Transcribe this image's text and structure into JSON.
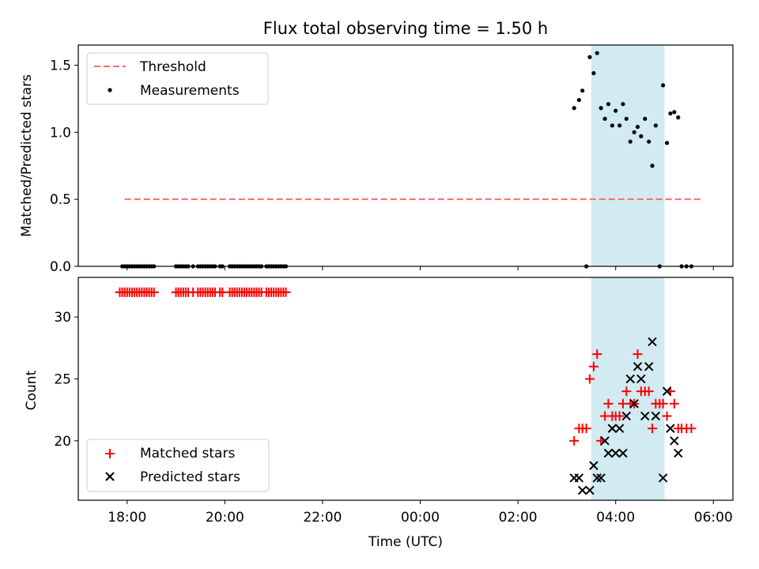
{
  "chart_data": {
    "title": "Flux total observing time = 1.50 h",
    "xlabel": "Time (UTC)",
    "xlim_hours": [
      17.0,
      30.4
    ],
    "x_ticks": [
      {
        "h": 18,
        "label": "18:00"
      },
      {
        "h": 20,
        "label": "20:00"
      },
      {
        "h": 22,
        "label": "22:00"
      },
      {
        "h": 24,
        "label": "00:00"
      },
      {
        "h": 26,
        "label": "02:00"
      },
      {
        "h": 28,
        "label": "04:00"
      },
      {
        "h": 30,
        "label": "06:00"
      }
    ],
    "highlight_span_hours": [
      27.5,
      29.0
    ],
    "highlight_color": "#add8e6",
    "panels": [
      {
        "type": "line+scatter",
        "ylabel": "Matched/Predicted stars",
        "ylim": [
          0,
          1.65
        ],
        "y_ticks": [
          {
            "v": 0.0,
            "label": "0.0"
          },
          {
            "v": 0.5,
            "label": "0.5"
          },
          {
            "v": 1.0,
            "label": "1.0"
          },
          {
            "v": 1.5,
            "label": "1.5"
          }
        ],
        "legend": {
          "position": "top-left",
          "threshold": "Threshold",
          "measurements": "Measurements"
        },
        "threshold": {
          "value": 0.5,
          "x_range_hours": [
            17.95,
            29.75
          ],
          "color": "#ff6b6b"
        },
        "measurements": [
          [
            17.9,
            0
          ],
          [
            17.95,
            0
          ],
          [
            18.0,
            0
          ],
          [
            18.05,
            0
          ],
          [
            18.1,
            0
          ],
          [
            18.15,
            0
          ],
          [
            18.2,
            0
          ],
          [
            18.25,
            0
          ],
          [
            18.3,
            0
          ],
          [
            18.35,
            0
          ],
          [
            18.4,
            0
          ],
          [
            18.45,
            0
          ],
          [
            18.5,
            0
          ],
          [
            18.55,
            0
          ],
          [
            19.0,
            0
          ],
          [
            19.05,
            0
          ],
          [
            19.1,
            0
          ],
          [
            19.15,
            0
          ],
          [
            19.2,
            0
          ],
          [
            19.25,
            0
          ],
          [
            19.35,
            0
          ],
          [
            19.45,
            0
          ],
          [
            19.5,
            0
          ],
          [
            19.55,
            0
          ],
          [
            19.6,
            0
          ],
          [
            19.65,
            0
          ],
          [
            19.7,
            0
          ],
          [
            19.75,
            0
          ],
          [
            19.8,
            0
          ],
          [
            19.9,
            0
          ],
          [
            19.95,
            0
          ],
          [
            20.1,
            0
          ],
          [
            20.15,
            0
          ],
          [
            20.2,
            0
          ],
          [
            20.25,
            0
          ],
          [
            20.3,
            0
          ],
          [
            20.35,
            0
          ],
          [
            20.4,
            0
          ],
          [
            20.45,
            0
          ],
          [
            20.5,
            0
          ],
          [
            20.55,
            0
          ],
          [
            20.6,
            0
          ],
          [
            20.65,
            0
          ],
          [
            20.7,
            0
          ],
          [
            20.75,
            0
          ],
          [
            20.85,
            0
          ],
          [
            20.9,
            0
          ],
          [
            20.95,
            0
          ],
          [
            21.0,
            0
          ],
          [
            21.05,
            0
          ],
          [
            21.1,
            0
          ],
          [
            21.15,
            0
          ],
          [
            21.2,
            0
          ],
          [
            21.25,
            0
          ],
          [
            27.15,
            1.18
          ],
          [
            27.25,
            1.24
          ],
          [
            27.32,
            1.31
          ],
          [
            27.4,
            0.0
          ],
          [
            27.47,
            1.56
          ],
          [
            27.55,
            1.44
          ],
          [
            27.62,
            1.59
          ],
          [
            27.7,
            1.18
          ],
          [
            27.78,
            1.1
          ],
          [
            27.85,
            1.21
          ],
          [
            27.93,
            1.05
          ],
          [
            28.0,
            1.16
          ],
          [
            28.08,
            1.05
          ],
          [
            28.15,
            1.21
          ],
          [
            28.22,
            1.1
          ],
          [
            28.3,
            0.93
          ],
          [
            28.38,
            1.0
          ],
          [
            28.45,
            1.04
          ],
          [
            28.52,
            0.97
          ],
          [
            28.6,
            1.1
          ],
          [
            28.68,
            0.93
          ],
          [
            28.75,
            0.75
          ],
          [
            28.82,
            1.05
          ],
          [
            28.9,
            0.0
          ],
          [
            28.97,
            1.35
          ],
          [
            29.05,
            0.92
          ],
          [
            29.12,
            1.14
          ],
          [
            29.2,
            1.15
          ],
          [
            29.28,
            1.11
          ],
          [
            29.35,
            0.0
          ],
          [
            29.45,
            0.0
          ],
          [
            29.55,
            0.0
          ]
        ]
      },
      {
        "type": "scatter",
        "ylabel": "Count",
        "ylim": [
          15.2,
          33.2
        ],
        "y_ticks": [
          {
            "v": 20,
            "label": "20"
          },
          {
            "v": 25,
            "label": "25"
          },
          {
            "v": 30,
            "label": "30"
          }
        ],
        "legend": {
          "position": "bottom-left"
        },
        "series": [
          {
            "name": "Matched stars",
            "marker": "plus",
            "color": "#ff0000",
            "points": [
              [
                17.85,
                32
              ],
              [
                17.9,
                32
              ],
              [
                17.95,
                32
              ],
              [
                18.0,
                32
              ],
              [
                18.05,
                32
              ],
              [
                18.1,
                32
              ],
              [
                18.15,
                32
              ],
              [
                18.2,
                32
              ],
              [
                18.25,
                32
              ],
              [
                18.3,
                32
              ],
              [
                18.35,
                32
              ],
              [
                18.4,
                32
              ],
              [
                18.45,
                32
              ],
              [
                18.5,
                32
              ],
              [
                18.55,
                32
              ],
              [
                19.0,
                32
              ],
              [
                19.05,
                32
              ],
              [
                19.1,
                32
              ],
              [
                19.15,
                32
              ],
              [
                19.2,
                32
              ],
              [
                19.25,
                32
              ],
              [
                19.35,
                32
              ],
              [
                19.45,
                32
              ],
              [
                19.5,
                32
              ],
              [
                19.55,
                32
              ],
              [
                19.6,
                32
              ],
              [
                19.65,
                32
              ],
              [
                19.7,
                32
              ],
              [
                19.75,
                32
              ],
              [
                19.8,
                32
              ],
              [
                19.9,
                32
              ],
              [
                19.95,
                32
              ],
              [
                20.1,
                32
              ],
              [
                20.15,
                32
              ],
              [
                20.2,
                32
              ],
              [
                20.25,
                32
              ],
              [
                20.3,
                32
              ],
              [
                20.35,
                32
              ],
              [
                20.4,
                32
              ],
              [
                20.45,
                32
              ],
              [
                20.5,
                32
              ],
              [
                20.55,
                32
              ],
              [
                20.6,
                32
              ],
              [
                20.65,
                32
              ],
              [
                20.7,
                32
              ],
              [
                20.75,
                32
              ],
              [
                20.85,
                32
              ],
              [
                20.9,
                32
              ],
              [
                20.95,
                32
              ],
              [
                21.0,
                32
              ],
              [
                21.05,
                32
              ],
              [
                21.1,
                32
              ],
              [
                21.15,
                32
              ],
              [
                21.2,
                32
              ],
              [
                21.25,
                32
              ],
              [
                27.15,
                20
              ],
              [
                27.25,
                21
              ],
              [
                27.32,
                21
              ],
              [
                27.4,
                21
              ],
              [
                27.47,
                25
              ],
              [
                27.55,
                26
              ],
              [
                27.62,
                27
              ],
              [
                27.7,
                20
              ],
              [
                27.78,
                22
              ],
              [
                27.85,
                23
              ],
              [
                27.93,
                22
              ],
              [
                28.0,
                22
              ],
              [
                28.08,
                22
              ],
              [
                28.15,
                23
              ],
              [
                28.22,
                24
              ],
              [
                28.3,
                23
              ],
              [
                28.38,
                23
              ],
              [
                28.45,
                27
              ],
              [
                28.52,
                24
              ],
              [
                28.6,
                24
              ],
              [
                28.68,
                24
              ],
              [
                28.75,
                21
              ],
              [
                28.82,
                23
              ],
              [
                28.9,
                23
              ],
              [
                28.97,
                23
              ],
              [
                29.05,
                22
              ],
              [
                29.12,
                24
              ],
              [
                29.2,
                23
              ],
              [
                29.28,
                21
              ],
              [
                29.35,
                21
              ],
              [
                29.45,
                21
              ],
              [
                29.55,
                21
              ]
            ]
          },
          {
            "name": "Predicted stars",
            "marker": "x",
            "color": "#000000",
            "points": [
              [
                27.15,
                17
              ],
              [
                27.25,
                17
              ],
              [
                27.32,
                16
              ],
              [
                27.47,
                16
              ],
              [
                27.55,
                18
              ],
              [
                27.62,
                17
              ],
              [
                27.7,
                17
              ],
              [
                27.78,
                20
              ],
              [
                27.85,
                19
              ],
              [
                27.93,
                21
              ],
              [
                28.0,
                19
              ],
              [
                28.08,
                21
              ],
              [
                28.15,
                19
              ],
              [
                28.22,
                22
              ],
              [
                28.3,
                25
              ],
              [
                28.38,
                23
              ],
              [
                28.45,
                26
              ],
              [
                28.52,
                25
              ],
              [
                28.6,
                22
              ],
              [
                28.68,
                26
              ],
              [
                28.75,
                28
              ],
              [
                28.82,
                22
              ],
              [
                28.97,
                17
              ],
              [
                29.05,
                24
              ],
              [
                29.12,
                21
              ],
              [
                29.2,
                20
              ],
              [
                29.28,
                19
              ]
            ]
          }
        ]
      }
    ]
  }
}
